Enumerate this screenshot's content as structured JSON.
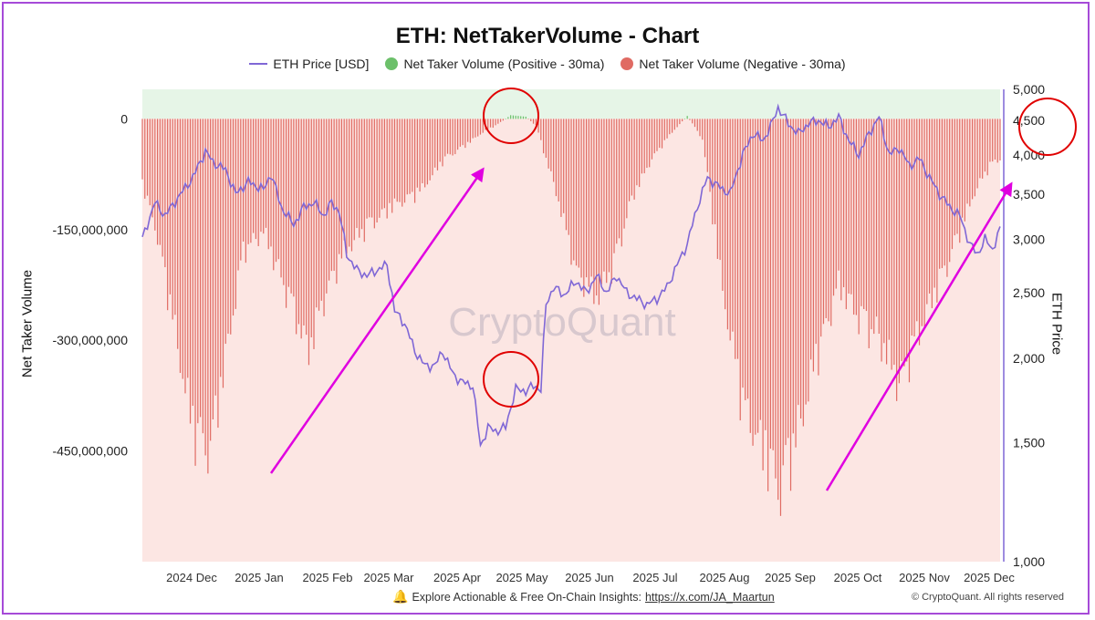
{
  "chart_data": {
    "type": "bar",
    "title": "ETH: NetTakerVolume - Chart",
    "legend": [
      "ETH Price [USD]",
      "Net Taker Volume (Positive - 30ma)",
      "Net Taker Volume (Negative - 30ma)"
    ],
    "ylabel_left": "Net Taker Volume",
    "ylabel_right": "ETH Price",
    "watermark": "CryptoQuant",
    "left_axis": {
      "min": -600000000,
      "max": 40000000,
      "ticks": [
        0,
        -150000000,
        -300000000,
        -450000000
      ],
      "tick_labels": [
        "0",
        "-150,000,000",
        "-300,000,000",
        "-450,000,000"
      ]
    },
    "right_axis": {
      "scale": "log",
      "min": 1000,
      "max": 5000,
      "ticks": [
        5000,
        4500,
        4000,
        3500,
        3000,
        2500,
        2000,
        1500,
        1000
      ],
      "tick_labels": [
        "5,000",
        "4,500",
        "4,000",
        "3,500",
        "3,000",
        "2,500",
        "2,000",
        "1,500",
        "1,000"
      ]
    },
    "x_tick_labels": [
      "2024 Dec",
      "2025 Jan",
      "2025 Feb",
      "2025 Mar",
      "2025 Apr",
      "2025 May",
      "2025 Jun",
      "2025 Jul",
      "2025 Aug",
      "2025 Sep",
      "2025 Oct",
      "2025 Nov",
      "2025 Dec"
    ],
    "net_taker_volume_anchors": [
      {
        "day": 0,
        "value": -100000000
      },
      {
        "day": 5,
        "value": -160000000
      },
      {
        "day": 12,
        "value": -300000000
      },
      {
        "day": 20,
        "value": -470000000
      },
      {
        "day": 27,
        "value": -500000000
      },
      {
        "day": 33,
        "value": -360000000
      },
      {
        "day": 40,
        "value": -200000000
      },
      {
        "day": 48,
        "value": -170000000
      },
      {
        "day": 57,
        "value": -260000000
      },
      {
        "day": 66,
        "value": -350000000
      },
      {
        "day": 73,
        "value": -260000000
      },
      {
        "day": 80,
        "value": -200000000
      },
      {
        "day": 90,
        "value": -160000000
      },
      {
        "day": 100,
        "value": -130000000
      },
      {
        "day": 110,
        "value": -110000000
      },
      {
        "day": 120,
        "value": -60000000
      },
      {
        "day": 128,
        "value": -40000000
      },
      {
        "day": 135,
        "value": -20000000
      },
      {
        "day": 140,
        "value": -10000000
      },
      {
        "day": 146,
        "value": 5000000
      },
      {
        "day": 152,
        "value": 3000000
      },
      {
        "day": 156,
        "value": -10000000
      },
      {
        "day": 164,
        "value": -110000000
      },
      {
        "day": 172,
        "value": -230000000
      },
      {
        "day": 180,
        "value": -270000000
      },
      {
        "day": 187,
        "value": -220000000
      },
      {
        "day": 194,
        "value": -120000000
      },
      {
        "day": 202,
        "value": -60000000
      },
      {
        "day": 210,
        "value": -20000000
      },
      {
        "day": 216,
        "value": 4000000
      },
      {
        "day": 222,
        "value": -30000000
      },
      {
        "day": 230,
        "value": -260000000
      },
      {
        "day": 238,
        "value": -430000000
      },
      {
        "day": 246,
        "value": -500000000
      },
      {
        "day": 253,
        "value": -560000000
      },
      {
        "day": 260,
        "value": -470000000
      },
      {
        "day": 268,
        "value": -350000000
      },
      {
        "day": 276,
        "value": -250000000
      },
      {
        "day": 284,
        "value": -300000000
      },
      {
        "day": 292,
        "value": -330000000
      },
      {
        "day": 300,
        "value": -400000000
      },
      {
        "day": 306,
        "value": -340000000
      },
      {
        "day": 312,
        "value": -280000000
      },
      {
        "day": 318,
        "value": -230000000
      },
      {
        "day": 324,
        "value": -170000000
      },
      {
        "day": 330,
        "value": -110000000
      },
      {
        "day": 336,
        "value": -70000000
      },
      {
        "day": 340,
        "value": -60000000
      }
    ],
    "eth_price_anchors": [
      {
        "day": 0,
        "value": 3000
      },
      {
        "day": 5,
        "value": 3400
      },
      {
        "day": 9,
        "value": 3250
      },
      {
        "day": 14,
        "value": 3450
      },
      {
        "day": 20,
        "value": 3700
      },
      {
        "day": 25,
        "value": 4050
      },
      {
        "day": 28,
        "value": 3900
      },
      {
        "day": 33,
        "value": 3800
      },
      {
        "day": 37,
        "value": 3500
      },
      {
        "day": 42,
        "value": 3650
      },
      {
        "day": 48,
        "value": 3550
      },
      {
        "day": 51,
        "value": 3750
      },
      {
        "day": 55,
        "value": 3350
      },
      {
        "day": 60,
        "value": 3150
      },
      {
        "day": 64,
        "value": 3350
      },
      {
        "day": 68,
        "value": 3400
      },
      {
        "day": 72,
        "value": 3250
      },
      {
        "day": 75,
        "value": 3400
      },
      {
        "day": 78,
        "value": 3300
      },
      {
        "day": 81,
        "value": 2850
      },
      {
        "day": 85,
        "value": 2700
      },
      {
        "day": 89,
        "value": 2650
      },
      {
        "day": 93,
        "value": 2700
      },
      {
        "day": 97,
        "value": 2750
      },
      {
        "day": 100,
        "value": 2350
      },
      {
        "day": 104,
        "value": 2250
      },
      {
        "day": 108,
        "value": 2050
      },
      {
        "day": 112,
        "value": 1950
      },
      {
        "day": 116,
        "value": 1950
      },
      {
        "day": 119,
        "value": 2050
      },
      {
        "day": 123,
        "value": 1900
      },
      {
        "day": 126,
        "value": 1850
      },
      {
        "day": 131,
        "value": 1820
      },
      {
        "day": 134,
        "value": 1480
      },
      {
        "day": 137,
        "value": 1580
      },
      {
        "day": 140,
        "value": 1560
      },
      {
        "day": 144,
        "value": 1580
      },
      {
        "day": 148,
        "value": 1800
      },
      {
        "day": 152,
        "value": 1790
      },
      {
        "day": 155,
        "value": 1820
      },
      {
        "day": 158,
        "value": 1800
      },
      {
        "day": 160,
        "value": 2400
      },
      {
        "day": 163,
        "value": 2550
      },
      {
        "day": 167,
        "value": 2480
      },
      {
        "day": 172,
        "value": 2600
      },
      {
        "day": 176,
        "value": 2500
      },
      {
        "day": 180,
        "value": 2650
      },
      {
        "day": 184,
        "value": 2500
      },
      {
        "day": 188,
        "value": 2650
      },
      {
        "day": 192,
        "value": 2500
      },
      {
        "day": 196,
        "value": 2450
      },
      {
        "day": 200,
        "value": 2400
      },
      {
        "day": 204,
        "value": 2450
      },
      {
        "day": 208,
        "value": 2550
      },
      {
        "day": 212,
        "value": 2750
      },
      {
        "day": 216,
        "value": 2950
      },
      {
        "day": 220,
        "value": 3350
      },
      {
        "day": 224,
        "value": 3700
      },
      {
        "day": 228,
        "value": 3600
      },
      {
        "day": 233,
        "value": 3500
      },
      {
        "day": 238,
        "value": 4000
      },
      {
        "day": 242,
        "value": 4300
      },
      {
        "day": 246,
        "value": 4200
      },
      {
        "day": 249,
        "value": 4400
      },
      {
        "day": 252,
        "value": 4700
      },
      {
        "day": 256,
        "value": 4450
      },
      {
        "day": 260,
        "value": 4300
      },
      {
        "day": 264,
        "value": 4450
      },
      {
        "day": 268,
        "value": 4500
      },
      {
        "day": 272,
        "value": 4400
      },
      {
        "day": 276,
        "value": 4550
      },
      {
        "day": 280,
        "value": 4200
      },
      {
        "day": 284,
        "value": 4000
      },
      {
        "day": 288,
        "value": 4300
      },
      {
        "day": 292,
        "value": 4550
      },
      {
        "day": 296,
        "value": 4000
      },
      {
        "day": 300,
        "value": 4100
      },
      {
        "day": 304,
        "value": 3850
      },
      {
        "day": 308,
        "value": 3950
      },
      {
        "day": 312,
        "value": 3700
      },
      {
        "day": 316,
        "value": 3500
      },
      {
        "day": 320,
        "value": 3350
      },
      {
        "day": 324,
        "value": 3250
      },
      {
        "day": 328,
        "value": 2950
      },
      {
        "day": 331,
        "value": 2850
      },
      {
        "day": 334,
        "value": 3000
      },
      {
        "day": 337,
        "value": 2900
      },
      {
        "day": 340,
        "value": 3100
      }
    ],
    "annotations": [
      {
        "type": "circle",
        "near": "2025 May top (positive bars)",
        "color": "#e00000"
      },
      {
        "type": "circle",
        "near": "2025 Apr-May price bottom",
        "color": "#e00000"
      },
      {
        "type": "circle",
        "near": "right axis 4,500 label",
        "color": "#e00000"
      },
      {
        "type": "arrow",
        "from": "2025 Jan bottom",
        "to": "2025 May top",
        "color": "#e000e0"
      },
      {
        "type": "arrow",
        "from": "2025 Sep bottom",
        "to": "2025 Dec right",
        "color": "#e000e0"
      }
    ],
    "colors": {
      "price_line": "#7f67d6",
      "negative_bar": "#e06b63",
      "positive_bar": "#6cc06a",
      "negative_bg": "#fce6e3",
      "positive_bg": "#e6f5e7",
      "annotation_circle": "#e00000",
      "annotation_arrow": "#e000e0"
    }
  },
  "footer": {
    "text": "Explore Actionable & Free On-Chain Insights:",
    "link": "https://x.com/JA_Maartun",
    "copyright": "© CryptoQuant. All rights reserved"
  }
}
